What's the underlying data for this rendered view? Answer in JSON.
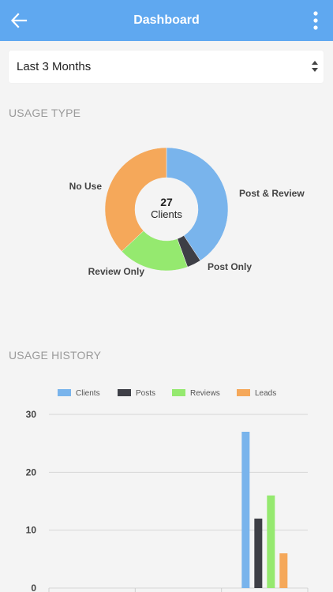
{
  "header": {
    "title": "Dashboard",
    "back_icon": "arrow-left-icon",
    "menu_icon": "more-vertical-icon"
  },
  "filter": {
    "selected": "Last 3 Months",
    "caret_icon": "select-caret-icon"
  },
  "usage_type": {
    "title": "USAGE TYPE",
    "center_value": "27",
    "center_label": "Clients"
  },
  "usage_history": {
    "title": "USAGE HISTORY"
  },
  "colors": {
    "clients": "#79b4ec",
    "posts": "#3e3f46",
    "reviews": "#95e96f",
    "leads": "#f5a85a",
    "appbar": "#5fa8f0"
  },
  "chart_data": [
    {
      "type": "pie",
      "variant": "donut",
      "labels": [
        "Post & Review",
        "Post Only",
        "Review Only",
        "No Use"
      ],
      "values": [
        11,
        1,
        5,
        10
      ],
      "colors": [
        "#79b4ec",
        "#3e3f46",
        "#95e96f",
        "#f5a85a"
      ]
    },
    {
      "type": "bar",
      "legend": [
        "Clients",
        "Posts",
        "Reviews",
        "Leads"
      ],
      "legend_position": "top",
      "series": [
        {
          "name": "Clients",
          "color": "#79b4ec",
          "values": [
            0,
            0,
            27
          ]
        },
        {
          "name": "Posts",
          "color": "#3e3f46",
          "values": [
            0,
            0,
            12
          ]
        },
        {
          "name": "Reviews",
          "color": "#95e96f",
          "values": [
            0,
            0,
            16
          ]
        },
        {
          "name": "Leads",
          "color": "#f5a85a",
          "values": [
            0,
            0,
            6
          ]
        }
      ],
      "yticks": [
        "0",
        "10",
        "20",
        "30"
      ],
      "ylim": [
        0,
        30
      ],
      "grid": true
    }
  ]
}
